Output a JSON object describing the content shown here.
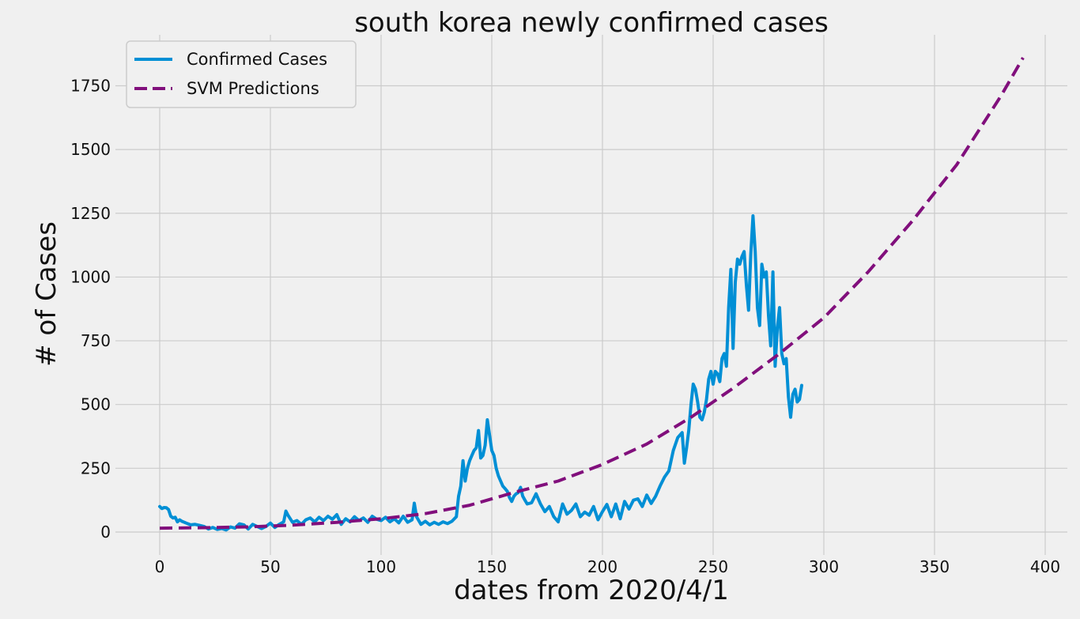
{
  "chart_data": {
    "type": "line",
    "title": "south korea newly confirmed cases",
    "xlabel": "dates from 2020/4/1",
    "ylabel": "# of Cases",
    "xlim": [
      -20,
      410
    ],
    "ylim": [
      -90,
      1950
    ],
    "x_ticks": [
      0,
      50,
      100,
      150,
      200,
      250,
      300,
      350,
      400
    ],
    "y_ticks": [
      0,
      250,
      500,
      750,
      1000,
      1250,
      1500,
      1750
    ],
    "grid": true,
    "legend_position": "top-left",
    "series": [
      {
        "name": "Confirmed Cases",
        "color": "#008fd5",
        "style": "solid",
        "points": [
          [
            0,
            100
          ],
          [
            1,
            92
          ],
          [
            2,
            96
          ],
          [
            3,
            95
          ],
          [
            4,
            88
          ],
          [
            5,
            62
          ],
          [
            6,
            55
          ],
          [
            7,
            58
          ],
          [
            8,
            40
          ],
          [
            9,
            48
          ],
          [
            10,
            42
          ],
          [
            12,
            35
          ],
          [
            14,
            28
          ],
          [
            16,
            30
          ],
          [
            18,
            26
          ],
          [
            20,
            22
          ],
          [
            22,
            12
          ],
          [
            24,
            18
          ],
          [
            26,
            10
          ],
          [
            28,
            14
          ],
          [
            30,
            8
          ],
          [
            32,
            20
          ],
          [
            34,
            15
          ],
          [
            36,
            32
          ],
          [
            38,
            28
          ],
          [
            40,
            12
          ],
          [
            42,
            30
          ],
          [
            44,
            22
          ],
          [
            46,
            14
          ],
          [
            48,
            22
          ],
          [
            50,
            35
          ],
          [
            52,
            18
          ],
          [
            54,
            30
          ],
          [
            56,
            40
          ],
          [
            57,
            82
          ],
          [
            58,
            65
          ],
          [
            60,
            38
          ],
          [
            62,
            45
          ],
          [
            64,
            30
          ],
          [
            66,
            48
          ],
          [
            68,
            55
          ],
          [
            70,
            40
          ],
          [
            72,
            58
          ],
          [
            74,
            45
          ],
          [
            76,
            62
          ],
          [
            78,
            50
          ],
          [
            80,
            68
          ],
          [
            82,
            30
          ],
          [
            84,
            52
          ],
          [
            86,
            40
          ],
          [
            88,
            60
          ],
          [
            90,
            45
          ],
          [
            92,
            55
          ],
          [
            94,
            38
          ],
          [
            96,
            62
          ],
          [
            98,
            50
          ],
          [
            100,
            45
          ],
          [
            102,
            58
          ],
          [
            104,
            40
          ],
          [
            106,
            52
          ],
          [
            108,
            36
          ],
          [
            110,
            62
          ],
          [
            112,
            38
          ],
          [
            114,
            48
          ],
          [
            115,
            113
          ],
          [
            116,
            60
          ],
          [
            118,
            30
          ],
          [
            120,
            42
          ],
          [
            122,
            28
          ],
          [
            124,
            38
          ],
          [
            126,
            30
          ],
          [
            128,
            40
          ],
          [
            130,
            33
          ],
          [
            132,
            42
          ],
          [
            134,
            60
          ],
          [
            135,
            140
          ],
          [
            136,
            180
          ],
          [
            137,
            280
          ],
          [
            138,
            200
          ],
          [
            139,
            250
          ],
          [
            140,
            280
          ],
          [
            141,
            300
          ],
          [
            142,
            320
          ],
          [
            143,
            330
          ],
          [
            144,
            398
          ],
          [
            145,
            290
          ],
          [
            146,
            300
          ],
          [
            147,
            340
          ],
          [
            148,
            440
          ],
          [
            149,
            380
          ],
          [
            150,
            320
          ],
          [
            151,
            300
          ],
          [
            152,
            250
          ],
          [
            153,
            220
          ],
          [
            154,
            200
          ],
          [
            155,
            180
          ],
          [
            156,
            170
          ],
          [
            157,
            160
          ],
          [
            158,
            135
          ],
          [
            159,
            120
          ],
          [
            160,
            140
          ],
          [
            161,
            150
          ],
          [
            162,
            155
          ],
          [
            163,
            175
          ],
          [
            164,
            140
          ],
          [
            165,
            125
          ],
          [
            166,
            110
          ],
          [
            168,
            115
          ],
          [
            170,
            150
          ],
          [
            172,
            110
          ],
          [
            174,
            80
          ],
          [
            176,
            100
          ],
          [
            178,
            60
          ],
          [
            180,
            40
          ],
          [
            182,
            110
          ],
          [
            184,
            70
          ],
          [
            186,
            85
          ],
          [
            188,
            110
          ],
          [
            190,
            60
          ],
          [
            192,
            78
          ],
          [
            194,
            66
          ],
          [
            196,
            100
          ],
          [
            198,
            48
          ],
          [
            200,
            80
          ],
          [
            202,
            108
          ],
          [
            204,
            60
          ],
          [
            206,
            110
          ],
          [
            208,
            52
          ],
          [
            210,
            120
          ],
          [
            212,
            90
          ],
          [
            214,
            125
          ],
          [
            216,
            130
          ],
          [
            218,
            100
          ],
          [
            220,
            145
          ],
          [
            222,
            112
          ],
          [
            224,
            140
          ],
          [
            226,
            180
          ],
          [
            228,
            215
          ],
          [
            230,
            240
          ],
          [
            232,
            320
          ],
          [
            234,
            370
          ],
          [
            236,
            390
          ],
          [
            237,
            270
          ],
          [
            238,
            330
          ],
          [
            239,
            400
          ],
          [
            240,
            500
          ],
          [
            241,
            580
          ],
          [
            242,
            560
          ],
          [
            243,
            510
          ],
          [
            244,
            450
          ],
          [
            245,
            440
          ],
          [
            246,
            470
          ],
          [
            247,
            520
          ],
          [
            248,
            600
          ],
          [
            249,
            630
          ],
          [
            250,
            580
          ],
          [
            251,
            630
          ],
          [
            252,
            620
          ],
          [
            253,
            590
          ],
          [
            254,
            680
          ],
          [
            255,
            700
          ],
          [
            256,
            650
          ],
          [
            257,
            880
          ],
          [
            258,
            1030
          ],
          [
            259,
            720
          ],
          [
            260,
            980
          ],
          [
            261,
            1070
          ],
          [
            262,
            1050
          ],
          [
            263,
            1080
          ],
          [
            264,
            1100
          ],
          [
            265,
            970
          ],
          [
            266,
            870
          ],
          [
            267,
            1090
          ],
          [
            268,
            1240
          ],
          [
            269,
            1100
          ],
          [
            270,
            880
          ],
          [
            271,
            810
          ],
          [
            272,
            1050
          ],
          [
            273,
            1000
          ],
          [
            274,
            1020
          ],
          [
            275,
            850
          ],
          [
            276,
            730
          ],
          [
            277,
            1020
          ],
          [
            278,
            650
          ],
          [
            279,
            800
          ],
          [
            280,
            880
          ],
          [
            281,
            700
          ],
          [
            282,
            660
          ],
          [
            283,
            680
          ],
          [
            284,
            530
          ],
          [
            285,
            450
          ],
          [
            286,
            540
          ],
          [
            287,
            560
          ],
          [
            288,
            510
          ],
          [
            289,
            520
          ],
          [
            290,
            575
          ]
        ]
      },
      {
        "name": "SVM Predictions",
        "color": "#810f7c",
        "style": "dashed",
        "points": [
          [
            0,
            15
          ],
          [
            20,
            17
          ],
          [
            40,
            20
          ],
          [
            60,
            27
          ],
          [
            80,
            38
          ],
          [
            100,
            52
          ],
          [
            120,
            72
          ],
          [
            140,
            105
          ],
          [
            160,
            155
          ],
          [
            180,
            200
          ],
          [
            200,
            265
          ],
          [
            220,
            345
          ],
          [
            240,
            450
          ],
          [
            260,
            570
          ],
          [
            280,
            700
          ],
          [
            300,
            840
          ],
          [
            320,
            1020
          ],
          [
            340,
            1220
          ],
          [
            360,
            1440
          ],
          [
            380,
            1710
          ],
          [
            390,
            1860
          ]
        ]
      }
    ]
  }
}
